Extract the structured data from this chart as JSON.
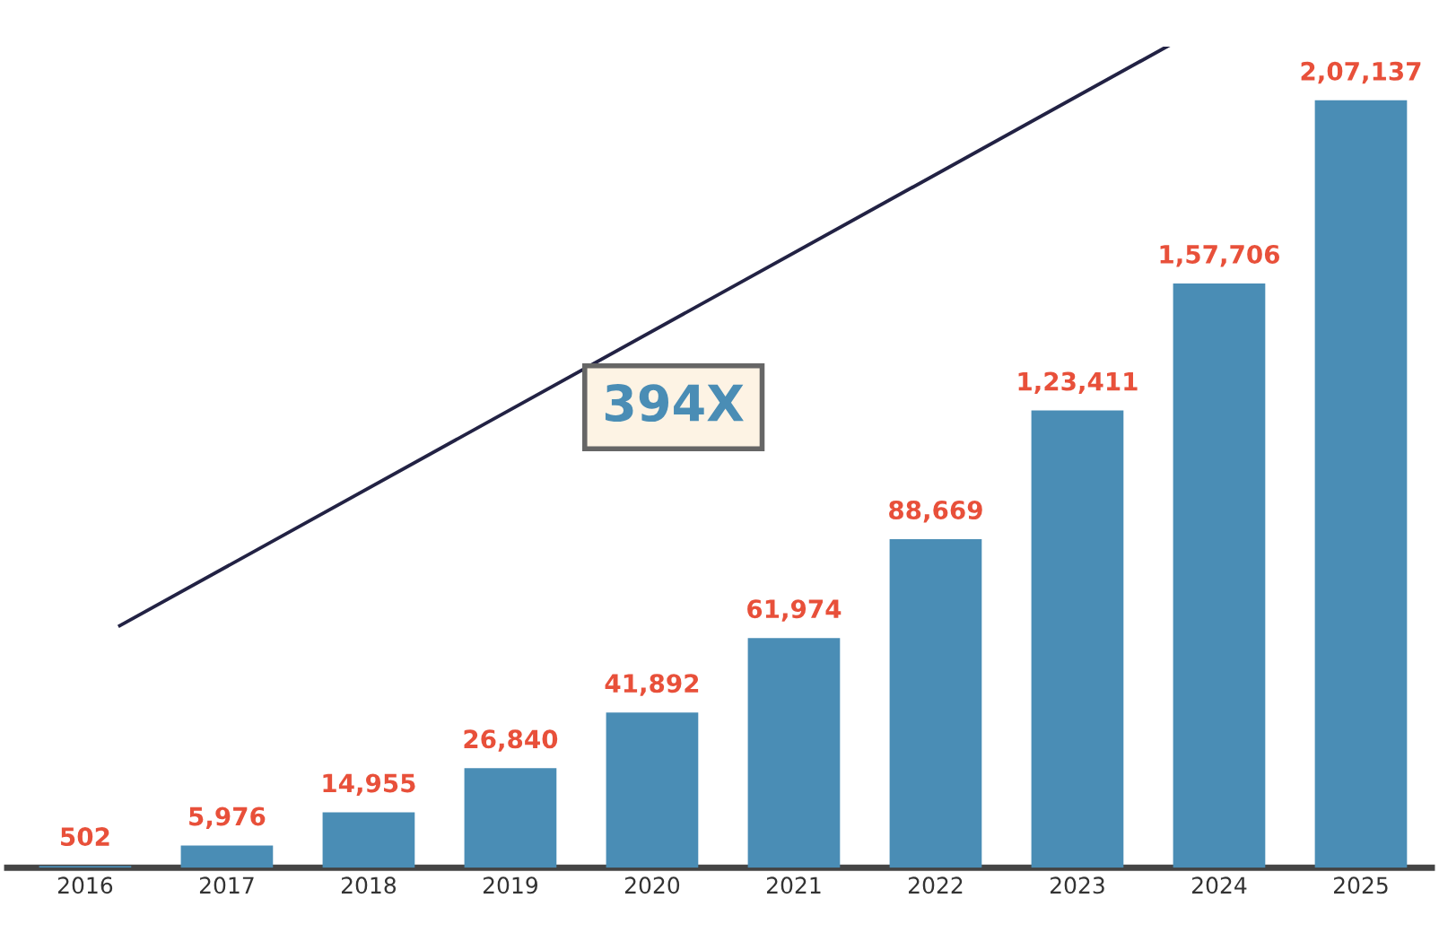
{
  "chart_data": {
    "type": "bar",
    "categories": [
      "2016",
      "2017",
      "2018",
      "2019",
      "2020",
      "2021",
      "2022",
      "2023",
      "2024",
      "2025"
    ],
    "values": [
      502,
      5976,
      14955,
      26840,
      41892,
      61974,
      88669,
      123411,
      157706,
      207137
    ],
    "value_labels": [
      "502",
      "5,976",
      "14,955",
      "26,840",
      "41,892",
      "61,974",
      "88,669",
      "1,23,411",
      "1,57,706",
      "2,07,137"
    ],
    "color": "#4a8db5",
    "annotations": [
      "394X"
    ],
    "grid": false,
    "tick_labels": "x"
  }
}
